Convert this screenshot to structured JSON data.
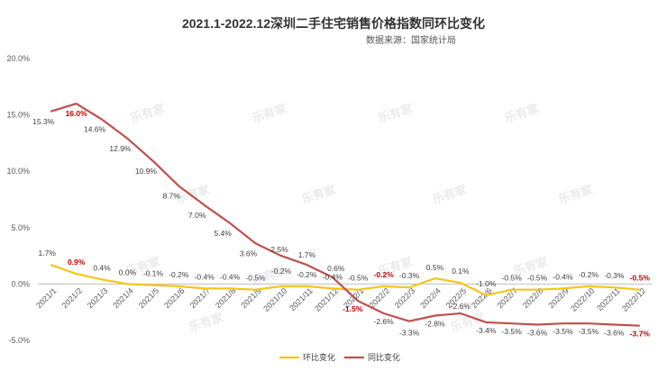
{
  "chart_data": {
    "type": "line",
    "title": "2021.1-2022.12深圳二手住宅销售价格指数同环比变化",
    "subtitle": "数据来源：国家统计局",
    "watermark": "乐有家",
    "categories": [
      "2021/1",
      "2021/2",
      "2021/3",
      "2021/4",
      "2021/5",
      "2021/6",
      "2021/7",
      "2021/8",
      "2021/9",
      "2021/10",
      "2021/11",
      "2021/12",
      "2022/1",
      "2022/2",
      "2022/3",
      "2022/4",
      "2022/5",
      "2022/6",
      "2022/7",
      "2022/8",
      "2022/9",
      "2022/10",
      "2022/11",
      "2022/12"
    ],
    "series": [
      {
        "name": "环比变化",
        "color": "#f5c518",
        "values": [
          1.7,
          0.9,
          0.4,
          0.0,
          -0.1,
          -0.2,
          -0.4,
          -0.4,
          -0.5,
          -0.2,
          -0.2,
          -0.4,
          -0.5,
          -0.2,
          -0.3,
          0.5,
          0.1,
          -1.0,
          -0.5,
          -0.5,
          -0.4,
          -0.2,
          -0.3,
          -0.5
        ],
        "labels": [
          "1.7%",
          "0.9%",
          "0.4%",
          "0.0%",
          "-0.1%",
          "-0.2%",
          "-0.4%",
          "-0.4%",
          "-0.5%",
          "-0.2%",
          "-0.2%",
          "-0.4%",
          "-0.5%",
          "-0.2%",
          "-0.3%",
          "0.5%",
          "0.1%",
          "-1.0%",
          "-0.5%",
          "-0.5%",
          "-0.4%",
          "-0.2%",
          "-0.3%",
          "-0.5%"
        ],
        "highlight": [
          1,
          13,
          23
        ]
      },
      {
        "name": "同比变化",
        "color": "#c0504d",
        "values": [
          15.3,
          16.0,
          14.6,
          12.9,
          10.9,
          8.7,
          7.0,
          5.4,
          3.6,
          2.5,
          1.7,
          0.6,
          -1.5,
          -2.6,
          -3.3,
          -2.8,
          -2.6,
          -3.4,
          -3.5,
          -3.6,
          -3.5,
          -3.5,
          -3.6,
          -3.7
        ],
        "labels": [
          "15.3%",
          "16.0%",
          "14.6%",
          "12.9%",
          "10.9%",
          "8.7%",
          "7.0%",
          "5.4%",
          "3.6%",
          "2.5%",
          "1.7%",
          "0.6%",
          "-1.5%",
          "-2.6%",
          "-3.3%",
          "-2.8%",
          "-2.6%",
          "-3.4%",
          "-3.5%",
          "-3.6%",
          "-3.5%",
          "-3.5%",
          "-3.6%",
          "-3.7%"
        ],
        "highlight": [
          1,
          12,
          23
        ]
      }
    ],
    "y_ticks": [
      "20.0%",
      "15.0%",
      "10.0%",
      "5.0%",
      "0.0%",
      "-5.0%"
    ],
    "ylim": [
      -5,
      20
    ],
    "grid": false,
    "legend": "bottom"
  }
}
